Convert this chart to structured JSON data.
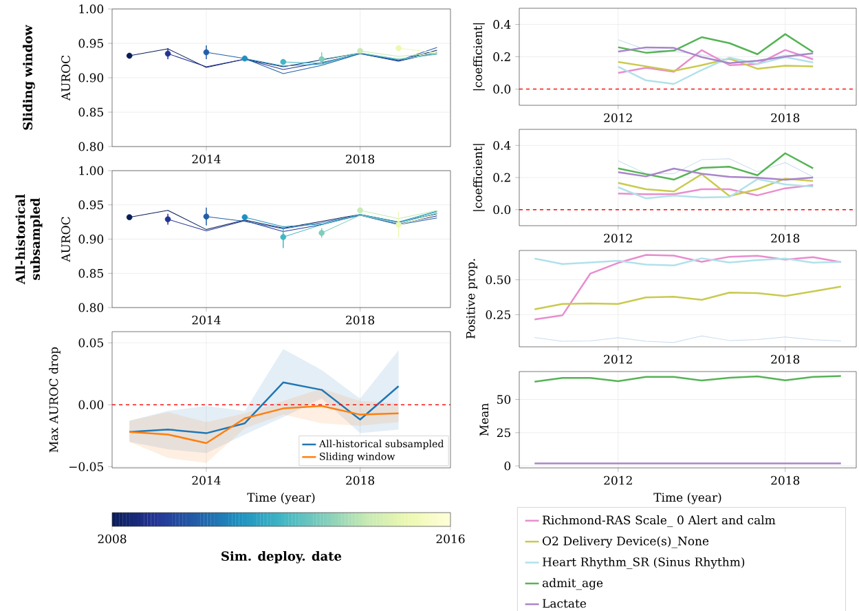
{
  "chart_data": [
    {
      "type": "line",
      "title": "Sliding window",
      "ylabel": "AUROC",
      "xlim": [
        2011.55,
        2020.35
      ],
      "ylim": [
        0.8,
        1.0
      ],
      "xticks": [
        2014,
        2018
      ],
      "yticks": [
        {
          "value": 0.8,
          "label": "0.80"
        },
        {
          "value": 0.85,
          "label": "0.85"
        },
        {
          "value": 0.9,
          "label": "0.90"
        },
        {
          "value": 0.95,
          "label": "0.95"
        },
        {
          "value": 1.0,
          "label": "1.00"
        }
      ],
      "grid": true,
      "clabel": "Sim. deploy. date",
      "clim": [
        2008,
        2016
      ],
      "cticks": [
        2008,
        2016
      ],
      "series": [
        {
          "color": "#081d58",
          "x": [
            2012,
            2013,
            2014,
            2015,
            2016,
            2017,
            2018,
            2019,
            2020
          ],
          "values": [
            0.932,
            0.942,
            0.915,
            0.927,
            0.916,
            0.926,
            0.936,
            0.925,
            0.94
          ]
        },
        {
          "color": "#253494",
          "x": [
            2013,
            2014,
            2015,
            2016,
            2017,
            2018,
            2019,
            2020
          ],
          "values": [
            0.935,
            0.916,
            0.927,
            0.912,
            0.922,
            0.935,
            0.924,
            0.937
          ]
        },
        {
          "color": "#225ea8",
          "x": [
            2014,
            2015,
            2016,
            2017,
            2018,
            2019,
            2020
          ],
          "values": [
            0.937,
            0.928,
            0.906,
            0.918,
            0.935,
            0.925,
            0.944
          ]
        },
        {
          "color": "#1d91c0",
          "x": [
            2015,
            2016,
            2017,
            2018,
            2019,
            2020
          ],
          "values": [
            0.928,
            0.917,
            0.92,
            0.936,
            0.926,
            0.935
          ]
        },
        {
          "color": "#41b6c4",
          "x": [
            2016,
            2017,
            2018,
            2019,
            2020
          ],
          "values": [
            0.923,
            0.921,
            0.936,
            0.927,
            0.935
          ]
        },
        {
          "color": "#7fcdbb",
          "x": [
            2017,
            2018,
            2019,
            2020
          ],
          "values": [
            0.927,
            0.936,
            0.927,
            0.934
          ]
        },
        {
          "color": "#c7e9b4",
          "x": [
            2018,
            2019,
            2020
          ],
          "values": [
            0.939,
            0.931,
            0.936
          ]
        },
        {
          "color": "#edf8b1",
          "x": [
            2019,
            2020
          ],
          "values": [
            0.943,
            0.936
          ]
        },
        {
          "type": "scatter",
          "x": [
            2012,
            2013,
            2014,
            2015,
            2016,
            2017,
            2018,
            2019
          ],
          "values": [
            0.932,
            0.935,
            0.937,
            0.928,
            0.923,
            0.927,
            0.939,
            0.943
          ],
          "colors": [
            "#081d58",
            "#253494",
            "#225ea8",
            "#1d91c0",
            "#41b6c4",
            "#7fcdbb",
            "#c7e9b4",
            "#edf8b1"
          ],
          "errors": [
            0.004,
            0.008,
            0.01,
            0.002,
            0.003,
            0.01,
            0.003,
            0.003
          ]
        }
      ]
    },
    {
      "type": "line",
      "title": "All-historical subsampled",
      "ylabel": "AUROC",
      "xlim": [
        2011.55,
        2020.35
      ],
      "ylim": [
        0.8,
        1.0
      ],
      "xticks": [
        2014,
        2018
      ],
      "yticks": [
        {
          "value": 0.8,
          "label": "0.80"
        },
        {
          "value": 0.85,
          "label": "0.85"
        },
        {
          "value": 0.9,
          "label": "0.90"
        },
        {
          "value": 0.95,
          "label": "0.95"
        },
        {
          "value": 1.0,
          "label": "1.00"
        }
      ],
      "grid": true,
      "series": [
        {
          "color": "#081d58",
          "x": [
            2012,
            2013,
            2014,
            2015,
            2016,
            2017,
            2018,
            2019,
            2020
          ],
          "values": [
            0.932,
            0.942,
            0.914,
            0.928,
            0.916,
            0.926,
            0.936,
            0.925,
            0.937
          ]
        },
        {
          "color": "#253494",
          "x": [
            2013,
            2014,
            2015,
            2016,
            2017,
            2018,
            2019,
            2020
          ],
          "values": [
            0.929,
            0.912,
            0.927,
            0.911,
            0.921,
            0.935,
            0.922,
            0.934
          ]
        },
        {
          "color": "#225ea8",
          "x": [
            2014,
            2015,
            2016,
            2017,
            2018,
            2019,
            2020
          ],
          "values": [
            0.933,
            0.926,
            0.915,
            0.924,
            0.935,
            0.921,
            0.931
          ]
        },
        {
          "color": "#1d91c0",
          "x": [
            2015,
            2016,
            2017,
            2018,
            2019,
            2020
          ],
          "values": [
            0.932,
            0.918,
            0.922,
            0.936,
            0.925,
            0.941
          ]
        },
        {
          "color": "#41b6c4",
          "x": [
            2016,
            2017,
            2018,
            2019,
            2020
          ],
          "values": [
            0.903,
            0.921,
            0.936,
            0.924,
            0.94
          ]
        },
        {
          "color": "#7fcdbb",
          "x": [
            2017,
            2018,
            2019,
            2020
          ],
          "values": [
            0.909,
            0.935,
            0.923,
            0.938
          ]
        },
        {
          "color": "#c7e9b4",
          "x": [
            2018,
            2019,
            2020
          ],
          "values": [
            0.942,
            0.93,
            0.942
          ]
        },
        {
          "color": "#edf8b1",
          "x": [
            2019,
            2020
          ],
          "values": [
            0.921,
            0.936
          ]
        },
        {
          "type": "scatter",
          "x": [
            2012,
            2013,
            2014,
            2015,
            2016,
            2017,
            2018,
            2019
          ],
          "values": [
            0.932,
            0.929,
            0.933,
            0.932,
            0.903,
            0.909,
            0.942,
            0.921
          ],
          "colors": [
            "#081d58",
            "#253494",
            "#225ea8",
            "#1d91c0",
            "#41b6c4",
            "#7fcdbb",
            "#c7e9b4",
            "#edf8b1"
          ],
          "errors": [
            0.003,
            0.008,
            0.013,
            0.003,
            0.016,
            0.007,
            0.003,
            0.019
          ]
        }
      ]
    },
    {
      "type": "line",
      "xlabel": "Time (year)",
      "ylabel": "Max AUROC drop",
      "xlim": [
        2011.55,
        2020.35
      ],
      "ylim": [
        -0.051,
        0.059
      ],
      "xticks": [
        2014,
        2018
      ],
      "yticks": [
        {
          "value": -0.05,
          "label": "−0.05"
        },
        {
          "value": 0,
          "label": "0.00"
        },
        {
          "value": 0.05,
          "label": "0.05"
        }
      ],
      "grid": true,
      "legend": "bottom right",
      "ref_lines": [
        {
          "axis": "y",
          "value": 0,
          "color": "#ff0000",
          "line_style": "dashed"
        }
      ],
      "x": [
        2012,
        2013,
        2014,
        2015,
        2016,
        2017,
        2018,
        2019
      ],
      "series": [
        {
          "name": "All-historical subsampled",
          "color": "#1f77b4",
          "values": [
            -0.022,
            -0.02,
            -0.023,
            -0.015,
            0.018,
            0.012,
            -0.012,
            0.015
          ],
          "lower": [
            -0.03,
            -0.036,
            -0.039,
            -0.024,
            -0.01,
            0.005,
            -0.023,
            -0.02
          ],
          "upper": [
            -0.013,
            -0.005,
            -0.001,
            -0.005,
            0.045,
            0.028,
            0.005,
            0.044
          ]
        },
        {
          "name": "Sliding window",
          "color": "#ff7f0e",
          "values": [
            -0.022,
            -0.024,
            -0.031,
            -0.011,
            -0.003,
            -0.001,
            -0.008,
            -0.007
          ],
          "lower": [
            -0.03,
            -0.043,
            -0.047,
            -0.019,
            -0.008,
            -0.015,
            -0.017,
            -0.014
          ],
          "upper": [
            -0.013,
            -0.006,
            -0.014,
            -0.007,
            0.003,
            0.013,
            0.003,
            0.001
          ]
        }
      ]
    },
    {
      "type": "line",
      "ylabel": "|coefficient|",
      "xlim": [
        2008.45,
        2020.55
      ],
      "ylim": [
        -0.1,
        0.5
      ],
      "xticks": [
        2012,
        2018
      ],
      "yticks": [
        {
          "value": 0,
          "label": "0.0"
        },
        {
          "value": 0.2,
          "label": "0.2"
        },
        {
          "value": 0.4,
          "label": "0.4"
        }
      ],
      "grid": true,
      "legend": "bottom",
      "ref_lines": [
        {
          "axis": "y",
          "value": 0,
          "color": "#ff0000",
          "line_style": "dashed"
        }
      ],
      "x": [
        2012,
        2013,
        2014,
        2015,
        2016,
        2017,
        2018,
        2019
      ],
      "series": [
        {
          "color": "#c6dbef",
          "values": [
            0.305,
            0.244,
            0.234,
            0.212,
            0.181,
            0.169,
            0.212,
            0.198
          ]
        },
        {
          "name": "Richmond-RAS Scale_ 0  Alert and calm",
          "color": "#e88dce",
          "values": [
            0.1,
            0.132,
            0.108,
            0.241,
            0.148,
            0.155,
            0.242,
            0.184
          ]
        },
        {
          "name": "O2 Delivery Device(s)_None",
          "color": "#c9ca4e",
          "values": [
            0.168,
            0.141,
            0.113,
            0.148,
            0.188,
            0.126,
            0.145,
            0.141
          ]
        },
        {
          "name": "Heart Rhythm_SR (Sinus Rhythm)",
          "color": "#b1e1ea",
          "values": [
            0.139,
            0.054,
            0.032,
            0.118,
            0.195,
            0.155,
            0.198,
            0.165
          ]
        },
        {
          "name": "admit_age",
          "color": "#56b356",
          "values": [
            0.259,
            0.225,
            0.238,
            0.321,
            0.284,
            0.216,
            0.34,
            0.229
          ]
        },
        {
          "name": "Lactate",
          "color": "#a985ca",
          "values": [
            0.232,
            0.258,
            0.255,
            0.198,
            0.161,
            0.176,
            0.201,
            0.221
          ]
        }
      ]
    },
    {
      "type": "line",
      "ylabel": "|coefficient|",
      "xlim": [
        2008.45,
        2020.55
      ],
      "ylim": [
        -0.1,
        0.5
      ],
      "xticks": [
        2012,
        2018
      ],
      "yticks": [
        {
          "value": 0,
          "label": "0.0"
        },
        {
          "value": 0.2,
          "label": "0.2"
        },
        {
          "value": 0.4,
          "label": "0.4"
        }
      ],
      "grid": true,
      "ref_lines": [
        {
          "axis": "y",
          "value": 0,
          "color": "#ff0000",
          "line_style": "dashed"
        }
      ],
      "x": [
        2012,
        2013,
        2014,
        2015,
        2016,
        2017,
        2018,
        2019
      ],
      "series": [
        {
          "color": "#c6dbef",
          "values": [
            0.304,
            0.224,
            0.224,
            0.311,
            0.317,
            0.236,
            0.293,
            0.204
          ]
        },
        {
          "color": "#e88dce",
          "values": [
            0.1,
            0.096,
            0.096,
            0.127,
            0.127,
            0.089,
            0.133,
            0.153
          ]
        },
        {
          "color": "#c9ca4e",
          "values": [
            0.167,
            0.127,
            0.113,
            0.221,
            0.084,
            0.127,
            0.193,
            0.179
          ]
        },
        {
          "color": "#b1e1ea",
          "values": [
            0.139,
            0.07,
            0.087,
            0.076,
            0.079,
            0.19,
            0.157,
            0.143
          ]
        },
        {
          "color": "#56b356",
          "values": [
            0.257,
            0.221,
            0.187,
            0.26,
            0.267,
            0.214,
            0.351,
            0.257
          ]
        },
        {
          "color": "#a985ca",
          "values": [
            0.233,
            0.207,
            0.256,
            0.224,
            0.204,
            0.199,
            0.186,
            0.2
          ]
        }
      ]
    },
    {
      "type": "line",
      "ylabel": "Positive prop.",
      "xlim": [
        2008.45,
        2020.55
      ],
      "ylim": [
        0.02,
        0.71
      ],
      "xticks": [
        2012,
        2018
      ],
      "yticks": [
        {
          "value": 0.25,
          "label": "0.25"
        },
        {
          "value": 0.5,
          "label": "0.50"
        }
      ],
      "grid": true,
      "x": [
        2009,
        2010,
        2011,
        2012,
        2013,
        2014,
        2015,
        2016,
        2017,
        2018,
        2019,
        2020
      ],
      "series": [
        {
          "color": "#c6dbef",
          "values": [
            0.087,
            0.059,
            0.062,
            0.085,
            0.059,
            0.051,
            0.098,
            0.065,
            0.072,
            0.09,
            0.07,
            0.062
          ]
        },
        {
          "color": "#e88dce",
          "values": [
            0.216,
            0.245,
            0.544,
            0.621,
            0.678,
            0.673,
            0.629,
            0.665,
            0.672,
            0.645,
            0.662,
            0.626
          ]
        },
        {
          "color": "#c9ca4e",
          "values": [
            0.289,
            0.327,
            0.33,
            0.327,
            0.374,
            0.379,
            0.356,
            0.408,
            0.405,
            0.384,
            0.417,
            0.451
          ]
        },
        {
          "color": "#b1e1ea",
          "values": [
            0.652,
            0.613,
            0.624,
            0.636,
            0.609,
            0.603,
            0.654,
            0.624,
            0.641,
            0.652,
            0.623,
            0.629
          ]
        }
      ]
    },
    {
      "type": "line",
      "xlabel": "Time (year)",
      "ylabel": "Mean",
      "xlim": [
        2008.45,
        2020.55
      ],
      "ylim": [
        -1.5,
        71
      ],
      "xticks": [
        2012,
        2018
      ],
      "yticks": [
        0,
        25,
        50
      ],
      "grid": true,
      "x": [
        2009,
        2010,
        2011,
        2012,
        2013,
        2014,
        2015,
        2016,
        2017,
        2018,
        2019,
        2020
      ],
      "series": [
        {
          "color": "#56b356",
          "values": [
            63.4,
            66.2,
            66.2,
            63.7,
            67.0,
            67.0,
            64.3,
            66.3,
            67.4,
            64.4,
            67.0,
            67.7
          ]
        },
        {
          "color": "#a985ca",
          "values": [
            1.9,
            1.9,
            1.9,
            1.9,
            1.9,
            1.9,
            1.9,
            1.9,
            1.9,
            1.9,
            1.9,
            1.9
          ]
        }
      ]
    }
  ]
}
